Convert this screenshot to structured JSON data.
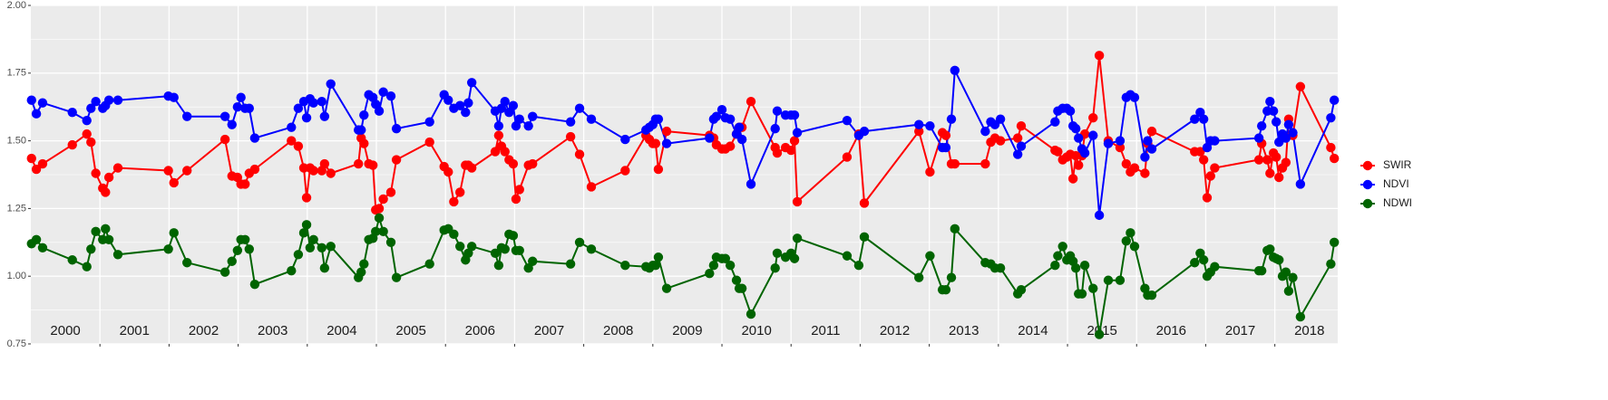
{
  "chart_data": {
    "type": "line",
    "year_labels": [
      "2000",
      "2001",
      "2002",
      "2003",
      "2004",
      "2005",
      "2006",
      "2007",
      "2008",
      "2009",
      "2010",
      "2011",
      "2012",
      "2013",
      "2014",
      "2015",
      "2016",
      "2017",
      "2018"
    ],
    "x": [
      2000.01,
      2000.08,
      2000.17,
      2000.6,
      2000.81,
      2000.87,
      2000.94,
      2001.04,
      2001.08,
      2001.13,
      2001.26,
      2001.99,
      2002.07,
      2002.26,
      2002.81,
      2002.91,
      2002.99,
      2003.04,
      2003.1,
      2003.16,
      2003.24,
      2003.77,
      2003.87,
      2003.95,
      2003.99,
      2004.04,
      2004.09,
      2004.21,
      2004.25,
      2004.34,
      2004.74,
      2004.78,
      2004.82,
      2004.89,
      2004.95,
      2004.99,
      2005.04,
      2005.1,
      2005.21,
      2005.29,
      2005.77,
      2005.98,
      2006.04,
      2006.12,
      2006.21,
      2006.29,
      2006.33,
      2006.38,
      2006.72,
      2006.77,
      2006.81,
      2006.86,
      2006.92,
      2006.98,
      2007.02,
      2007.07,
      2007.2,
      2007.26,
      2007.81,
      2007.94,
      2008.11,
      2008.6,
      2008.9,
      2008.95,
      2009.0,
      2009.04,
      2009.08,
      2009.2,
      2009.82,
      2009.88,
      2009.92,
      2010.0,
      2010.05,
      2010.12,
      2010.21,
      2010.25,
      2010.29,
      2010.42,
      2010.77,
      2010.8,
      2010.92,
      2011.0,
      2011.05,
      2011.09,
      2011.81,
      2011.98,
      2012.06,
      2012.85,
      2013.01,
      2013.19,
      2013.24,
      2013.32,
      2013.37,
      2013.81,
      2013.89,
      2013.95,
      2014.03,
      2014.28,
      2014.33,
      2014.82,
      2014.86,
      2014.93,
      2014.99,
      2015.04,
      2015.08,
      2015.12,
      2015.16,
      2015.21,
      2015.25,
      2015.37,
      2015.46,
      2015.59,
      2015.76,
      2015.85,
      2015.91,
      2015.97,
      2016.12,
      2016.16,
      2016.22,
      2016.84,
      2016.92,
      2016.97,
      2017.02,
      2017.07,
      2017.13,
      2017.77,
      2017.81,
      2017.89,
      2017.93,
      2017.98,
      2018.02,
      2018.06,
      2018.11,
      2018.16,
      2018.2,
      2018.26,
      2018.37,
      2018.81,
      2018.86
    ],
    "series": [
      {
        "name": "SWIR",
        "color": "#ff0000",
        "values": [
          1.435,
          1.395,
          1.415,
          1.485,
          1.525,
          1.495,
          1.38,
          1.325,
          1.31,
          1.365,
          1.4,
          1.39,
          1.345,
          1.39,
          1.505,
          1.37,
          1.365,
          1.34,
          1.34,
          1.38,
          1.395,
          1.5,
          1.48,
          1.4,
          1.29,
          1.4,
          1.39,
          1.39,
          1.415,
          1.38,
          1.415,
          1.51,
          1.49,
          1.415,
          1.41,
          1.245,
          1.25,
          1.285,
          1.31,
          1.43,
          1.495,
          1.405,
          1.385,
          1.275,
          1.31,
          1.41,
          1.41,
          1.4,
          1.46,
          1.52,
          1.48,
          1.46,
          1.43,
          1.415,
          1.285,
          1.32,
          1.41,
          1.415,
          1.515,
          1.45,
          1.33,
          1.39,
          1.52,
          1.505,
          1.49,
          1.49,
          1.395,
          1.535,
          1.52,
          1.51,
          1.485,
          1.47,
          1.47,
          1.48,
          1.525,
          1.55,
          1.55,
          1.645,
          1.475,
          1.455,
          1.475,
          1.465,
          1.5,
          1.275,
          1.44,
          1.525,
          1.27,
          1.535,
          1.385,
          1.53,
          1.52,
          1.415,
          1.415,
          1.415,
          1.495,
          1.51,
          1.5,
          1.51,
          1.555,
          1.465,
          1.46,
          1.43,
          1.44,
          1.45,
          1.36,
          1.445,
          1.41,
          1.445,
          1.525,
          1.585,
          1.815,
          1.5,
          1.475,
          1.415,
          1.385,
          1.4,
          1.38,
          1.49,
          1.535,
          1.46,
          1.46,
          1.43,
          1.29,
          1.37,
          1.4,
          1.43,
          1.49,
          1.43,
          1.38,
          1.455,
          1.44,
          1.365,
          1.4,
          1.42,
          1.58,
          1.52,
          1.7,
          1.475,
          1.435
        ]
      },
      {
        "name": "NDVI",
        "color": "#0000ff",
        "values": [
          1.65,
          1.6,
          1.64,
          1.605,
          1.575,
          1.62,
          1.645,
          1.62,
          1.63,
          1.65,
          1.65,
          1.665,
          1.66,
          1.59,
          1.59,
          1.56,
          1.625,
          1.66,
          1.62,
          1.62,
          1.51,
          1.55,
          1.62,
          1.645,
          1.585,
          1.655,
          1.64,
          1.645,
          1.59,
          1.71,
          1.54,
          1.54,
          1.595,
          1.67,
          1.66,
          1.635,
          1.61,
          1.68,
          1.665,
          1.545,
          1.57,
          1.67,
          1.65,
          1.62,
          1.63,
          1.605,
          1.64,
          1.715,
          1.61,
          1.555,
          1.62,
          1.645,
          1.605,
          1.63,
          1.555,
          1.58,
          1.555,
          1.59,
          1.57,
          1.62,
          1.58,
          1.505,
          1.54,
          1.55,
          1.56,
          1.58,
          1.58,
          1.49,
          1.51,
          1.58,
          1.59,
          1.615,
          1.585,
          1.58,
          1.525,
          1.55,
          1.505,
          1.34,
          1.545,
          1.61,
          1.595,
          1.595,
          1.595,
          1.53,
          1.575,
          1.52,
          1.535,
          1.56,
          1.555,
          1.475,
          1.475,
          1.58,
          1.76,
          1.535,
          1.57,
          1.56,
          1.58,
          1.45,
          1.48,
          1.57,
          1.61,
          1.62,
          1.62,
          1.61,
          1.555,
          1.545,
          1.51,
          1.47,
          1.455,
          1.52,
          1.225,
          1.49,
          1.5,
          1.66,
          1.67,
          1.66,
          1.44,
          1.5,
          1.47,
          1.58,
          1.605,
          1.58,
          1.475,
          1.5,
          1.5,
          1.51,
          1.555,
          1.61,
          1.645,
          1.61,
          1.57,
          1.495,
          1.525,
          1.51,
          1.56,
          1.53,
          1.34,
          1.585,
          1.65
        ]
      },
      {
        "name": "NDWI",
        "color": "#006400",
        "values": [
          1.12,
          1.135,
          1.105,
          1.06,
          1.035,
          1.1,
          1.165,
          1.135,
          1.175,
          1.135,
          1.08,
          1.1,
          1.16,
          1.05,
          1.015,
          1.055,
          1.095,
          1.135,
          1.135,
          1.1,
          0.97,
          1.02,
          1.08,
          1.16,
          1.19,
          1.105,
          1.135,
          1.105,
          1.03,
          1.11,
          0.995,
          1.015,
          1.045,
          1.135,
          1.14,
          1.165,
          1.215,
          1.165,
          1.125,
          0.995,
          1.045,
          1.17,
          1.175,
          1.155,
          1.11,
          1.06,
          1.085,
          1.11,
          1.085,
          1.04,
          1.105,
          1.1,
          1.155,
          1.15,
          1.095,
          1.095,
          1.03,
          1.055,
          1.045,
          1.125,
          1.1,
          1.04,
          1.035,
          1.03,
          1.04,
          1.04,
          1.07,
          0.955,
          1.01,
          1.04,
          1.07,
          1.065,
          1.065,
          1.04,
          0.985,
          0.955,
          0.955,
          0.86,
          1.03,
          1.085,
          1.07,
          1.085,
          1.065,
          1.14,
          1.075,
          1.04,
          1.145,
          0.995,
          1.075,
          0.95,
          0.95,
          0.995,
          1.175,
          1.05,
          1.045,
          1.03,
          1.03,
          0.935,
          0.95,
          1.04,
          1.075,
          1.11,
          1.06,
          1.075,
          1.055,
          1.03,
          0.935,
          0.935,
          1.04,
          0.955,
          0.785,
          0.985,
          0.985,
          1.13,
          1.16,
          1.11,
          0.955,
          0.93,
          0.93,
          1.05,
          1.085,
          1.06,
          1.0,
          1.015,
          1.035,
          1.02,
          1.02,
          1.095,
          1.1,
          1.07,
          1.065,
          1.06,
          1.0,
          1.015,
          0.945,
          0.995,
          0.85,
          1.045,
          1.125
        ]
      }
    ],
    "xlim": [
      2000,
      2018.91
    ],
    "xticks": [
      2001,
      2002,
      2003,
      2004,
      2005,
      2006,
      2007,
      2008,
      2009,
      2010,
      2011,
      2012,
      2013,
      2014,
      2015,
      2016,
      2017,
      2018
    ],
    "ylim": [
      0.75,
      2.0
    ],
    "yticks": [
      0.75,
      {
        "value": 1.0,
        "label": "1.00"
      },
      1.25,
      {
        "value": 1.5,
        "label": "1.50"
      },
      1.75,
      {
        "value": 2.0,
        "label": "2.00"
      }
    ],
    "grid": true,
    "legend": "right"
  }
}
